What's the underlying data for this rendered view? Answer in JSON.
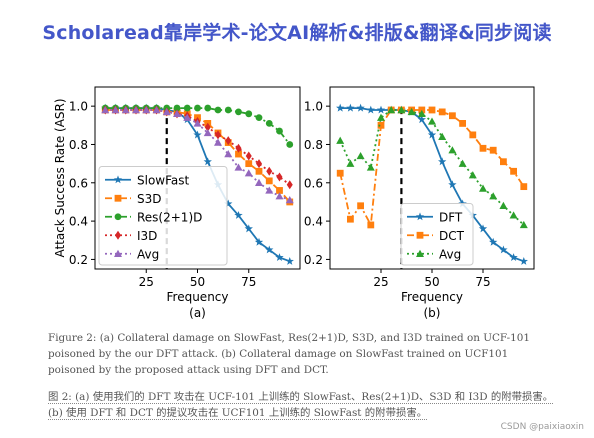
{
  "banner": {
    "title": "Scholaread靠岸学术-论文AI解析&排版&翻译&同步阅读"
  },
  "caption_en": "Figure 2: (a) Collateral damage on SlowFast, Res(2+1)D, S3D, and I3D trained on UCF-101 poisoned by the our DFT attack. (b) Collateral damage on SlowFast trained on UCF101 poisoned by the proposed attack using DFT and DCT.",
  "caption_zh": "图 2: (a) 使用我们的 DFT 攻击在 UCF-101 上训练的 SlowFast、Res(2+1)D、S3D 和 I3D 的附带损害。(b) 使用 DFT 和 DCT 的提议攻击在 UCF101 上训练的 SlowFast 的附带损害。",
  "watermark": "CSDN @paixiaoxin",
  "colors": {
    "banner": "#4457c9",
    "blue": "#1f77b4",
    "orange": "#ff7f0e",
    "green": "#2ca02c",
    "red": "#d62728",
    "purple": "#9467bd"
  },
  "chart_data": [
    {
      "type": "line",
      "panel_label": "(a)",
      "xlabel": "Frequency",
      "ylabel": "Attack Success Rate (ASR)",
      "xlim": [
        0,
        100
      ],
      "ylim": [
        0.15,
        1.1
      ],
      "xticks": [
        25,
        50,
        75
      ],
      "yticks": [
        0.2,
        0.4,
        0.6,
        0.8,
        1.0
      ],
      "ytick_labels": [
        "0.2",
        "0.4",
        "0.6",
        "0.8",
        "1.0"
      ],
      "vline_x": 35,
      "legend_position": "lower-left",
      "series": [
        {
          "name": "SlowFast",
          "color": "#1f77b4",
          "marker": "star",
          "dash": "solid",
          "x": [
            5,
            10,
            15,
            20,
            25,
            30,
            35,
            40,
            45,
            50,
            55,
            60,
            65,
            70,
            75,
            80,
            85,
            90,
            95
          ],
          "y": [
            0.99,
            0.99,
            0.99,
            0.99,
            0.99,
            0.99,
            0.98,
            0.97,
            0.93,
            0.85,
            0.71,
            0.59,
            0.49,
            0.43,
            0.36,
            0.29,
            0.25,
            0.21,
            0.19
          ]
        },
        {
          "name": "S3D",
          "color": "#ff7f0e",
          "marker": "square",
          "dash": "dashdot",
          "x": [
            5,
            10,
            15,
            20,
            25,
            30,
            35,
            40,
            45,
            50,
            55,
            60,
            65,
            70,
            75,
            80,
            85,
            90,
            95
          ],
          "y": [
            0.98,
            0.98,
            0.98,
            0.98,
            0.98,
            0.98,
            0.97,
            0.97,
            0.96,
            0.94,
            0.91,
            0.86,
            0.81,
            0.75,
            0.7,
            0.66,
            0.61,
            0.56,
            0.5
          ]
        },
        {
          "name": "Res(2+1)D",
          "color": "#2ca02c",
          "marker": "circle",
          "dash": "dashdot",
          "x": [
            5,
            10,
            15,
            20,
            25,
            30,
            35,
            40,
            45,
            50,
            55,
            60,
            65,
            70,
            75,
            80,
            85,
            90,
            95
          ],
          "y": [
            0.99,
            0.99,
            0.99,
            0.99,
            0.99,
            0.99,
            0.99,
            0.99,
            0.99,
            0.99,
            0.99,
            0.98,
            0.98,
            0.97,
            0.96,
            0.94,
            0.91,
            0.87,
            0.8
          ]
        },
        {
          "name": "I3D",
          "color": "#d62728",
          "marker": "diamond",
          "dash": "dotted",
          "x": [
            5,
            10,
            15,
            20,
            25,
            30,
            35,
            40,
            45,
            50,
            55,
            60,
            65,
            70,
            75,
            80,
            85,
            90,
            95
          ],
          "y": [
            0.98,
            0.98,
            0.98,
            0.98,
            0.98,
            0.98,
            0.97,
            0.96,
            0.95,
            0.92,
            0.89,
            0.85,
            0.82,
            0.78,
            0.74,
            0.7,
            0.66,
            0.63,
            0.59
          ]
        },
        {
          "name": "Avg",
          "color": "#9467bd",
          "marker": "triangle",
          "dash": "dotted",
          "x": [
            5,
            10,
            15,
            20,
            25,
            30,
            35,
            40,
            45,
            50,
            55,
            60,
            65,
            70,
            75,
            80,
            85,
            90,
            95
          ],
          "y": [
            0.98,
            0.98,
            0.98,
            0.98,
            0.98,
            0.98,
            0.97,
            0.96,
            0.94,
            0.91,
            0.86,
            0.81,
            0.75,
            0.68,
            0.65,
            0.6,
            0.56,
            0.53,
            0.51
          ]
        }
      ]
    },
    {
      "type": "line",
      "panel_label": "(b)",
      "xlabel": "Frequency",
      "ylabel": "",
      "xlim": [
        0,
        100
      ],
      "ylim": [
        0.15,
        1.1
      ],
      "xticks": [
        25,
        50,
        75
      ],
      "yticks": [
        0.2,
        0.4,
        0.6,
        0.8,
        1.0
      ],
      "ytick_labels": [
        "0.2",
        "0.4",
        "0.6",
        "0.8",
        "1.0"
      ],
      "vline_x": 35,
      "legend_position": "lower-center",
      "series": [
        {
          "name": "DFT",
          "color": "#1f77b4",
          "marker": "star",
          "dash": "solid",
          "x": [
            5,
            10,
            15,
            20,
            25,
            30,
            35,
            40,
            45,
            50,
            55,
            60,
            65,
            70,
            75,
            80,
            85,
            90,
            95
          ],
          "y": [
            0.99,
            0.99,
            0.99,
            0.98,
            0.98,
            0.98,
            0.98,
            0.97,
            0.93,
            0.85,
            0.71,
            0.59,
            0.49,
            0.43,
            0.36,
            0.29,
            0.25,
            0.21,
            0.19
          ]
        },
        {
          "name": "DCT",
          "color": "#ff7f0e",
          "marker": "square",
          "dash": "dashdot",
          "x": [
            5,
            10,
            15,
            20,
            25,
            30,
            35,
            40,
            45,
            50,
            55,
            60,
            65,
            70,
            75,
            80,
            85,
            90,
            95
          ],
          "y": [
            0.65,
            0.41,
            0.48,
            0.38,
            0.9,
            0.98,
            0.98,
            0.98,
            0.98,
            0.98,
            0.97,
            0.95,
            0.91,
            0.85,
            0.78,
            0.77,
            0.71,
            0.66,
            0.58
          ]
        },
        {
          "name": "Avg",
          "color": "#2ca02c",
          "marker": "triangle",
          "dash": "dotted",
          "x": [
            5,
            10,
            15,
            20,
            25,
            30,
            35,
            40,
            45,
            50,
            55,
            60,
            65,
            70,
            75,
            80,
            85,
            90,
            95
          ],
          "y": [
            0.82,
            0.7,
            0.74,
            0.68,
            0.94,
            0.98,
            0.98,
            0.97,
            0.96,
            0.92,
            0.84,
            0.77,
            0.7,
            0.64,
            0.57,
            0.53,
            0.48,
            0.43,
            0.38
          ]
        }
      ]
    }
  ]
}
